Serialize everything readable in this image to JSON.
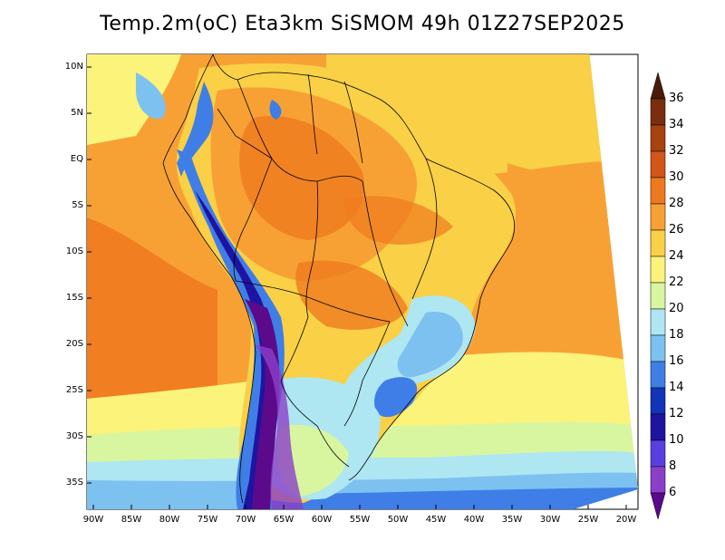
{
  "title": "Temp.2m(oC) Eta3km SiSMOM 49h 01Z27SEP2025",
  "lat_labels": [
    "10N",
    "5N",
    "EQ",
    "5S",
    "10S",
    "15S",
    "20S",
    "25S",
    "30S",
    "35S"
  ],
  "lon_labels": [
    "90W",
    "85W",
    "80W",
    "75W",
    "70W",
    "65W",
    "60W",
    "55W",
    "50W",
    "45W",
    "40W",
    "35W",
    "30W",
    "25W",
    "20W"
  ],
  "colorbar": {
    "labels": [
      "36",
      "34",
      "32",
      "30",
      "28",
      "26",
      "24",
      "22",
      "20",
      "18",
      "16",
      "14",
      "12",
      "10",
      "8",
      "6"
    ],
    "colors": [
      "#4a1a0a",
      "#7a2e0c",
      "#a8420f",
      "#d2551a",
      "#ef7a1e",
      "#f7a135",
      "#f9d046",
      "#fbf37a",
      "#d8f5a0",
      "#aee6f2",
      "#7dc1f0",
      "#3f7ee6",
      "#1234b8",
      "#1e14a0",
      "#5a3fe0",
      "#8b3fc8",
      "#5a0a8a"
    ]
  }
}
